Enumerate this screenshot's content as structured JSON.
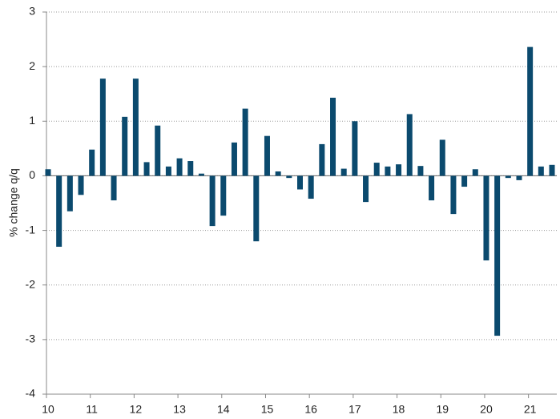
{
  "chart_data": {
    "type": "bar",
    "y_label": "% change q/q",
    "categories": [
      "10",
      null,
      null,
      null,
      "11",
      null,
      null,
      null,
      "12",
      null,
      null,
      null,
      "13",
      null,
      null,
      null,
      "14",
      null,
      null,
      null,
      "15",
      null,
      null,
      null,
      "16",
      null,
      null,
      null,
      "17",
      null,
      null,
      null,
      "18",
      null,
      null,
      null,
      "19",
      null,
      null,
      null,
      "20",
      null,
      null,
      null,
      "21",
      null,
      null
    ],
    "values": [
      0.12,
      -1.3,
      -0.65,
      -0.35,
      0.48,
      1.78,
      -0.45,
      1.08,
      1.78,
      0.25,
      0.92,
      0.17,
      0.32,
      0.27,
      0.04,
      -0.92,
      -0.73,
      0.61,
      1.23,
      -1.2,
      0.73,
      0.08,
      -0.04,
      -0.25,
      -0.42,
      0.58,
      1.43,
      0.13,
      1.0,
      -0.48,
      0.24,
      0.17,
      0.21,
      1.13,
      0.18,
      -0.45,
      0.66,
      -0.7,
      -0.2,
      0.12,
      -1.55,
      -2.93,
      -0.04,
      -0.08,
      2.36,
      0.17,
      0.2
    ],
    "color": "#0b4a6e",
    "ylim": [
      -4,
      3
    ],
    "yticks": [
      -4,
      -3,
      -2,
      -1,
      0,
      1,
      2,
      3
    ],
    "grid": true
  }
}
